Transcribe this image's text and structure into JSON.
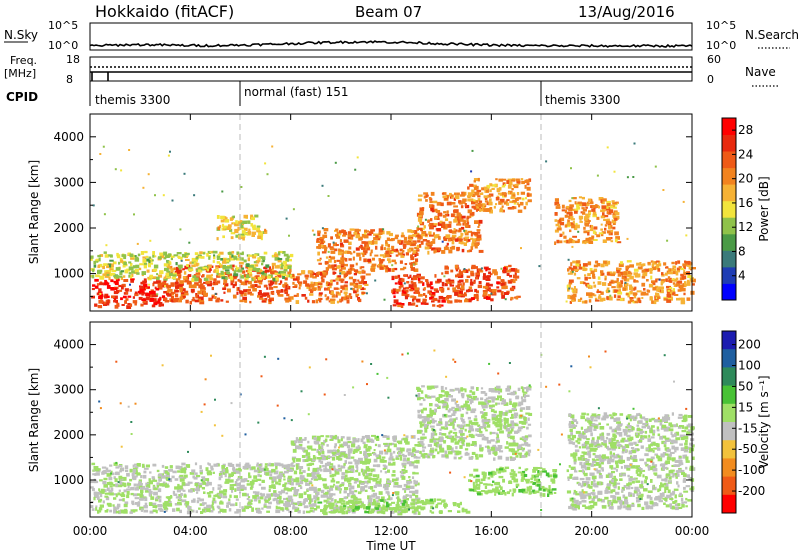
{
  "header": {
    "station": "Hokkaido (fitACF)",
    "beam": "Beam 07",
    "date": "13/Aug/2016"
  },
  "noise_panel": {
    "left_label": "N.Sky",
    "right_label": "N.Search",
    "ticks_left": [
      "10^5",
      "10^0"
    ],
    "ticks_right": [
      "10^5",
      "10^0"
    ]
  },
  "freq_panel": {
    "left_label_1": "Freq.",
    "left_label_2": "[MHz]",
    "ticks_left": [
      "18",
      "8"
    ],
    "right_label": "Nave",
    "ticks_right": [
      "60",
      "0"
    ]
  },
  "cpid": {
    "label": "CPID",
    "segments": [
      {
        "name": "themis 3300",
        "start_hour": 0
      },
      {
        "name": "normal (fast) 151",
        "start_hour": 6
      },
      {
        "name": "themis 3300",
        "start_hour": 18
      }
    ]
  },
  "x_axis": {
    "label": "Time UT",
    "ticks": [
      "00:00",
      "04:00",
      "08:00",
      "12:00",
      "16:00",
      "20:00",
      "00:00"
    ]
  },
  "power_colorbar": {
    "title": "Power [dB]",
    "ticks": [
      "28",
      "24",
      "20",
      "16",
      "12",
      "8",
      "4"
    ],
    "colors": [
      "#0000ff",
      "#1e3cb4",
      "#3a7a7a",
      "#4a9a46",
      "#8fc24a",
      "#f2e43c",
      "#f6b235",
      "#f2831f",
      "#ef5a17",
      "#e8290e",
      "#ff0000"
    ]
  },
  "velocity_colorbar": {
    "title": "Velocity [m s⁻¹]",
    "ticks": [
      "200",
      "100",
      "50",
      "15",
      "-15",
      "-50",
      "-100",
      "-200"
    ],
    "colors": [
      "#1c1cb0",
      "#1f5fa0",
      "#2e8a5a",
      "#48c235",
      "#9fdf66",
      "#c0c0c0",
      "#f2c23c",
      "#f28c1f",
      "#ef5a17",
      "#ff0000"
    ]
  },
  "chart_data": [
    {
      "type": "heatmap",
      "title": "Power",
      "xlabel": "Time UT",
      "ylabel": "Slant Range [km]",
      "xlim": [
        0,
        24
      ],
      "ylim": [
        180,
        4500
      ],
      "y_ticks": [
        1000,
        2000,
        3000,
        4000
      ],
      "colorbar_label": "Power [dB]",
      "colorbar_range": [
        0,
        30
      ],
      "regions": [
        {
          "x": [
            0,
            3
          ],
          "y": [
            300,
            900
          ],
          "value": 27
        },
        {
          "x": [
            3,
            8
          ],
          "y": [
            400,
            1200
          ],
          "value": 24
        },
        {
          "x": [
            0,
            8
          ],
          "y": [
            900,
            1500
          ],
          "value": 14
        },
        {
          "x": [
            8,
            11
          ],
          "y": [
            400,
            1100
          ],
          "value": 22
        },
        {
          "x": [
            9,
            13
          ],
          "y": [
            1100,
            2000
          ],
          "value": 22
        },
        {
          "x": [
            12,
            14
          ],
          "y": [
            300,
            1000
          ],
          "value": 26
        },
        {
          "x": [
            13,
            15.5
          ],
          "y": [
            1500,
            2800
          ],
          "value": 22
        },
        {
          "x": [
            15,
            17.5
          ],
          "y": [
            2400,
            3100
          ],
          "value": 20
        },
        {
          "x": [
            14,
            17
          ],
          "y": [
            400,
            1200
          ],
          "value": 25
        },
        {
          "x": [
            18.5,
            21
          ],
          "y": [
            1700,
            2700
          ],
          "value": 20
        },
        {
          "x": [
            19,
            24
          ],
          "y": [
            400,
            1300
          ],
          "value": 20
        },
        {
          "x": [
            5,
            7
          ],
          "y": [
            1800,
            2300
          ],
          "value": 16
        }
      ]
    },
    {
      "type": "heatmap",
      "title": "Velocity",
      "xlabel": "Time UT",
      "ylabel": "Slant Range [km]",
      "xlim": [
        0,
        24
      ],
      "ylim": [
        180,
        4500
      ],
      "y_ticks": [
        1000,
        2000,
        3000,
        4000
      ],
      "colorbar_label": "Velocity [m s⁻¹]",
      "colorbar_range": [
        -250,
        250
      ],
      "regions": [
        {
          "x": [
            0,
            8
          ],
          "y": [
            300,
            1400
          ],
          "value": 0
        },
        {
          "x": [
            8,
            13
          ],
          "y": [
            300,
            2000
          ],
          "value": 0
        },
        {
          "x": [
            13,
            17.5
          ],
          "y": [
            1500,
            3100
          ],
          "value": 0
        },
        {
          "x": [
            15,
            18.5
          ],
          "y": [
            700,
            1300
          ],
          "value": 40
        },
        {
          "x": [
            9,
            15
          ],
          "y": [
            300,
            600
          ],
          "value": 30
        },
        {
          "x": [
            19,
            24
          ],
          "y": [
            400,
            2500
          ],
          "value": 0
        }
      ]
    }
  ]
}
